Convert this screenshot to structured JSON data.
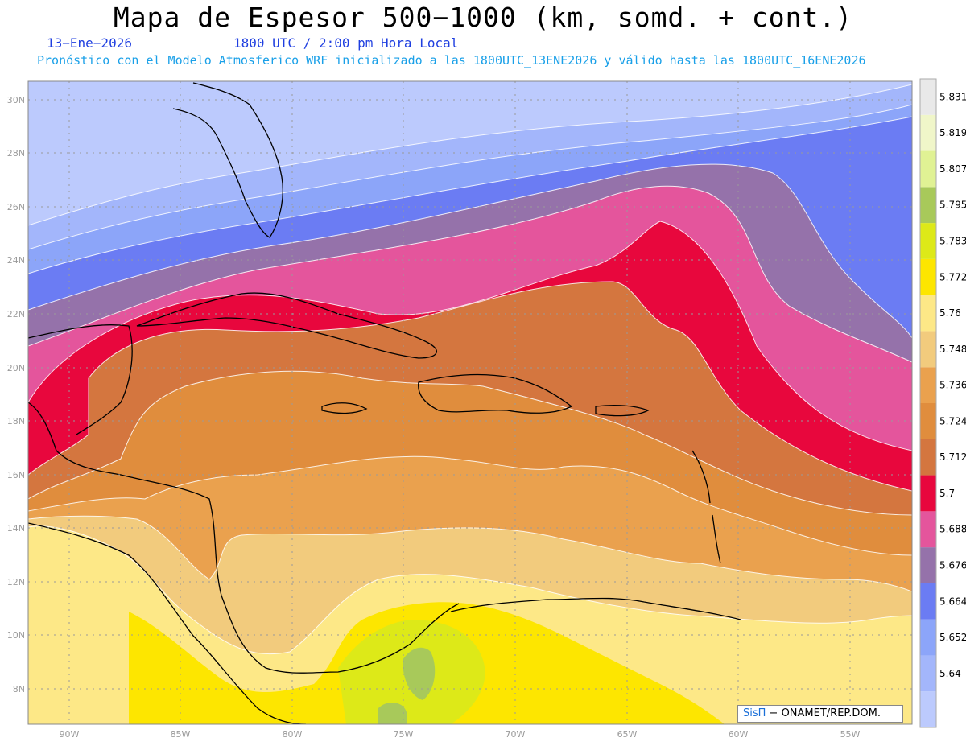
{
  "header": {
    "title": "Mapa de Espesor 500−1000 (km, somd. + cont.)",
    "date": "13−Ene−2026",
    "time": "1800 UTC / 2:00 pm Hora Local",
    "forecast": "Pronóstico con el Modelo Atmosferico WRF inicializado a las 1800UTC_13ENE2026 y válido hasta las  1800UTC_16ENE2026"
  },
  "axes": {
    "lat_labels": [
      "30N",
      "28N",
      "26N",
      "24N",
      "22N",
      "20N",
      "18N",
      "16N",
      "14N",
      "12N",
      "10N",
      "8N"
    ],
    "lon_labels": [
      "90W",
      "85W",
      "80W",
      "75W",
      "70W",
      "65W",
      "60W",
      "55W"
    ]
  },
  "legend": {
    "levels": [
      {
        "label": "",
        "color": "#bccafd"
      },
      {
        "label": "5.64",
        "color": "#a3b6fb"
      },
      {
        "label": "5.652",
        "color": "#8ca5f9"
      },
      {
        "label": "5.664",
        "color": "#6b7cf3"
      },
      {
        "label": "5.676",
        "color": "#9572aa"
      },
      {
        "label": "5.688",
        "color": "#e4559c"
      },
      {
        "label": "5.7",
        "color": "#e8073d"
      },
      {
        "label": "5.712",
        "color": "#d4763f"
      },
      {
        "label": "5.724",
        "color": "#e08d3d"
      },
      {
        "label": "5.736",
        "color": "#eaa14e"
      },
      {
        "label": "5.748",
        "color": "#f2cb7d"
      },
      {
        "label": "5.76",
        "color": "#fde887"
      },
      {
        "label": "5.772",
        "color": "#fde600"
      },
      {
        "label": "5.783",
        "color": "#dde918"
      },
      {
        "label": "5.795",
        "color": "#a8c95a"
      },
      {
        "label": "5.807",
        "color": "#e0f294"
      },
      {
        "label": "5.819",
        "color": "#f0f6c9"
      },
      {
        "label": "5.831",
        "color": "#e9e9e9"
      }
    ]
  },
  "credit": {
    "brand": "SisΠ",
    "text": " − ONAMET/REP.DOM."
  }
}
